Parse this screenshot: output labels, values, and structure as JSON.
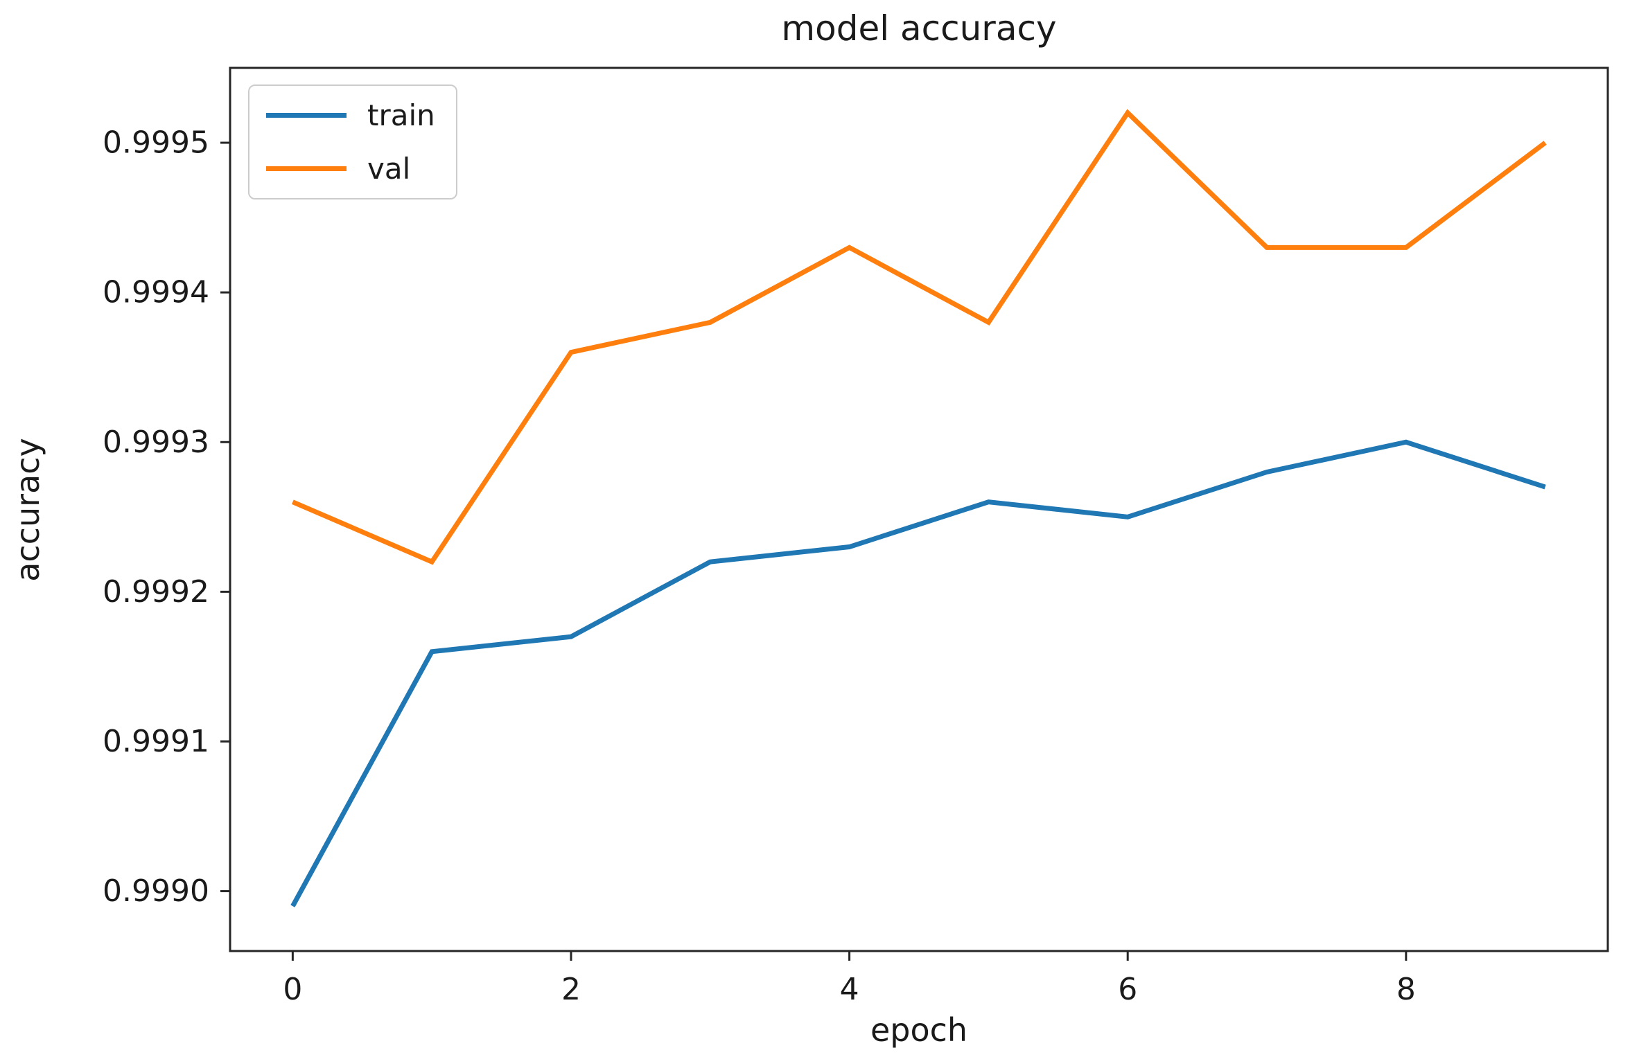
{
  "title": "model accuracy",
  "background": "#ffffff",
  "axis_color": "#262626",
  "text_color": "#1a1a1a",
  "legend_border_color": "#cccccc",
  "chart_data": {
    "type": "line",
    "title": "model accuracy",
    "xlabel": "epoch",
    "ylabel": "accuracy",
    "x": [
      0,
      1,
      2,
      3,
      4,
      5,
      6,
      7,
      8,
      9
    ],
    "series": [
      {
        "name": "train",
        "color": "#1f77b4",
        "values": [
          0.99899,
          0.99916,
          0.99917,
          0.99922,
          0.99923,
          0.99926,
          0.99925,
          0.99928,
          0.9993,
          0.99927
        ]
      },
      {
        "name": "val",
        "color": "#ff7f0e",
        "values": [
          0.99926,
          0.99922,
          0.99936,
          0.99938,
          0.99943,
          0.99938,
          0.99952,
          0.99943,
          0.99943,
          0.9995
        ]
      }
    ],
    "xticks": [
      "0",
      "2",
      "4",
      "6",
      "8"
    ],
    "yticks": [
      "0.9990",
      "0.9991",
      "0.9992",
      "0.9993",
      "0.9994",
      "0.9995"
    ],
    "xlim": [
      -0.45,
      9.45
    ],
    "ylim": [
      0.99896,
      0.99955
    ],
    "grid": false,
    "legend_position": "upper left",
    "legend": [
      "train",
      "val"
    ]
  }
}
